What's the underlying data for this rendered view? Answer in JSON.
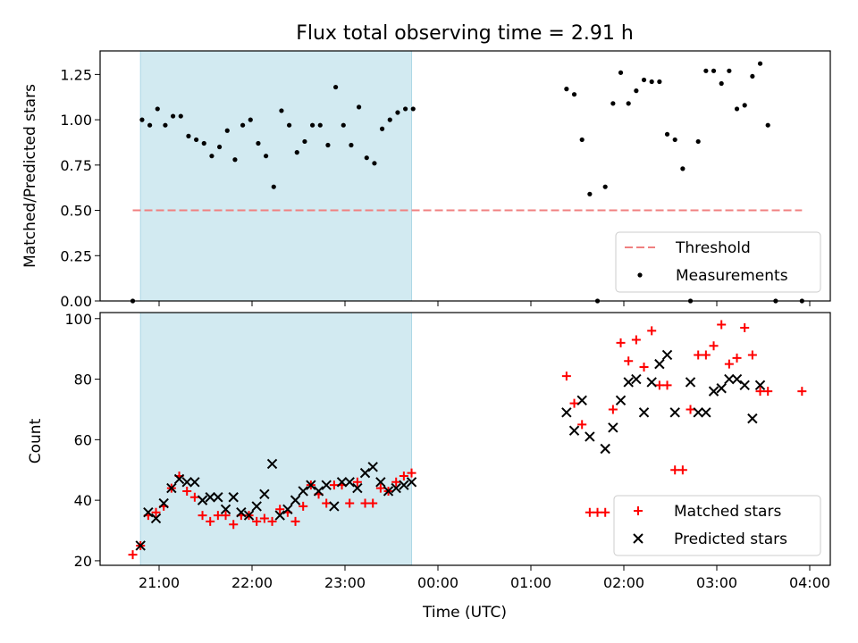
{
  "title": "Flux total observing time = 2.91 h",
  "colors": {
    "shade": "#add8e6",
    "threshold": "#f08080",
    "measurement": "#000000",
    "matched": "#ff0000",
    "predicted": "#000000"
  },
  "chart_data": [
    {
      "type": "scatter",
      "ylabel": "Matched/Predicted stars",
      "ylim": [
        0,
        1.38
      ],
      "yticks": [
        0,
        0.25,
        0.5,
        0.75,
        1.0,
        1.25
      ],
      "ytick_labels": [
        "0.00",
        "0.25",
        "0.50",
        "0.75",
        "1.00",
        "1.25"
      ],
      "shaded_interval": [
        "20:48",
        "23:43"
      ],
      "threshold": {
        "name": "Threshold",
        "y": 0.5,
        "x_range": [
          "20:43",
          "03:55"
        ]
      },
      "legend": {
        "position": "lower-right",
        "entries": [
          "Threshold",
          "Measurements"
        ]
      },
      "series": [
        {
          "name": "Measurements",
          "points": [
            [
              "20:43",
              0.0
            ],
            [
              "20:49",
              1.0
            ],
            [
              "20:54",
              0.97
            ],
            [
              "20:59",
              1.06
            ],
            [
              "21:04",
              0.97
            ],
            [
              "21:09",
              1.02
            ],
            [
              "21:14",
              1.02
            ],
            [
              "21:19",
              0.91
            ],
            [
              "21:24",
              0.89
            ],
            [
              "21:29",
              0.87
            ],
            [
              "21:34",
              0.8
            ],
            [
              "21:39",
              0.85
            ],
            [
              "21:44",
              0.94
            ],
            [
              "21:49",
              0.78
            ],
            [
              "21:54",
              0.97
            ],
            [
              "21:59",
              1.0
            ],
            [
              "22:04",
              0.87
            ],
            [
              "22:09",
              0.8
            ],
            [
              "22:14",
              0.63
            ],
            [
              "22:19",
              1.05
            ],
            [
              "22:24",
              0.97
            ],
            [
              "22:29",
              0.82
            ],
            [
              "22:34",
              0.88
            ],
            [
              "22:39",
              0.97
            ],
            [
              "22:44",
              0.97
            ],
            [
              "22:49",
              0.86
            ],
            [
              "22:54",
              1.18
            ],
            [
              "22:59",
              0.97
            ],
            [
              "23:04",
              0.86
            ],
            [
              "23:09",
              1.07
            ],
            [
              "23:14",
              0.79
            ],
            [
              "23:19",
              0.76
            ],
            [
              "23:24",
              0.95
            ],
            [
              "23:29",
              1.0
            ],
            [
              "23:34",
              1.04
            ],
            [
              "23:39",
              1.06
            ],
            [
              "23:44",
              1.06
            ],
            [
              "01:23",
              1.17
            ],
            [
              "01:28",
              1.14
            ],
            [
              "01:33",
              0.89
            ],
            [
              "01:38",
              0.59
            ],
            [
              "01:43",
              0.0
            ],
            [
              "01:48",
              0.63
            ],
            [
              "01:53",
              1.09
            ],
            [
              "01:58",
              1.26
            ],
            [
              "02:03",
              1.09
            ],
            [
              "02:08",
              1.16
            ],
            [
              "02:13",
              1.22
            ],
            [
              "02:18",
              1.21
            ],
            [
              "02:23",
              1.21
            ],
            [
              "02:28",
              0.92
            ],
            [
              "02:33",
              0.89
            ],
            [
              "02:38",
              0.73
            ],
            [
              "02:43",
              0.0
            ],
            [
              "02:48",
              0.88
            ],
            [
              "02:53",
              1.27
            ],
            [
              "02:58",
              1.27
            ],
            [
              "03:03",
              1.2
            ],
            [
              "03:08",
              1.27
            ],
            [
              "03:13",
              1.06
            ],
            [
              "03:18",
              1.08
            ],
            [
              "03:23",
              1.24
            ],
            [
              "03:28",
              1.31
            ],
            [
              "03:33",
              0.97
            ],
            [
              "03:38",
              0.0
            ],
            [
              "03:55",
              0.0
            ]
          ]
        }
      ]
    },
    {
      "type": "scatter",
      "xlabel": "Time (UTC)",
      "ylabel": "Count",
      "ylim": [
        18.5,
        102
      ],
      "yticks": [
        20,
        40,
        60,
        80,
        100
      ],
      "ytick_labels": [
        "20",
        "40",
        "60",
        "80",
        "100"
      ],
      "xticks": [
        "21:00",
        "22:00",
        "23:00",
        "00:00",
        "01:00",
        "02:00",
        "03:00",
        "04:00"
      ],
      "shaded_interval": [
        "20:48",
        "23:43"
      ],
      "legend": {
        "position": "lower-right",
        "entries": [
          "Matched stars",
          "Predicted stars"
        ]
      },
      "series": [
        {
          "name": "Matched stars",
          "points": [
            [
              "20:43",
              22
            ],
            [
              "20:48",
              25
            ],
            [
              "20:53",
              35
            ],
            [
              "20:58",
              36
            ],
            [
              "21:03",
              38
            ],
            [
              "21:08",
              44
            ],
            [
              "21:13",
              48
            ],
            [
              "21:18",
              43
            ],
            [
              "21:23",
              41
            ],
            [
              "21:28",
              35
            ],
            [
              "21:33",
              33
            ],
            [
              "21:38",
              35
            ],
            [
              "21:43",
              35
            ],
            [
              "21:48",
              32
            ],
            [
              "21:53",
              35
            ],
            [
              "21:58",
              35
            ],
            [
              "22:03",
              33
            ],
            [
              "22:08",
              34
            ],
            [
              "22:13",
              33
            ],
            [
              "22:18",
              37
            ],
            [
              "22:23",
              36
            ],
            [
              "22:28",
              33
            ],
            [
              "22:33",
              38
            ],
            [
              "22:38",
              45
            ],
            [
              "22:43",
              42
            ],
            [
              "22:48",
              39
            ],
            [
              "22:53",
              45
            ],
            [
              "22:58",
              45
            ],
            [
              "23:03",
              39
            ],
            [
              "23:08",
              46
            ],
            [
              "23:13",
              39
            ],
            [
              "23:18",
              39
            ],
            [
              "23:23",
              44
            ],
            [
              "23:28",
              43
            ],
            [
              "23:33",
              46
            ],
            [
              "23:38",
              48
            ],
            [
              "23:43",
              49
            ],
            [
              "01:23",
              81
            ],
            [
              "01:28",
              72
            ],
            [
              "01:33",
              65
            ],
            [
              "01:38",
              36
            ],
            [
              "01:43",
              36
            ],
            [
              "01:48",
              36
            ],
            [
              "01:53",
              70
            ],
            [
              "01:58",
              92
            ],
            [
              "02:03",
              86
            ],
            [
              "02:08",
              93
            ],
            [
              "02:13",
              84
            ],
            [
              "02:18",
              96
            ],
            [
              "02:23",
              78
            ],
            [
              "02:28",
              78
            ],
            [
              "02:33",
              50
            ],
            [
              "02:38",
              50
            ],
            [
              "02:43",
              70
            ],
            [
              "02:48",
              88
            ],
            [
              "02:53",
              88
            ],
            [
              "02:58",
              91
            ],
            [
              "03:03",
              98
            ],
            [
              "03:08",
              85
            ],
            [
              "03:13",
              87
            ],
            [
              "03:18",
              97
            ],
            [
              "03:23",
              88
            ],
            [
              "03:28",
              76
            ],
            [
              "03:33",
              76
            ],
            [
              "03:55",
              76
            ]
          ]
        },
        {
          "name": "Predicted stars",
          "points": [
            [
              "20:48",
              25
            ],
            [
              "20:53",
              36
            ],
            [
              "20:58",
              34
            ],
            [
              "21:03",
              39
            ],
            [
              "21:08",
              44
            ],
            [
              "21:13",
              47
            ],
            [
              "21:18",
              46
            ],
            [
              "21:23",
              46
            ],
            [
              "21:28",
              40
            ],
            [
              "21:33",
              41
            ],
            [
              "21:38",
              41
            ],
            [
              "21:43",
              37
            ],
            [
              "21:48",
              41
            ],
            [
              "21:53",
              36
            ],
            [
              "21:58",
              35
            ],
            [
              "22:03",
              38
            ],
            [
              "22:08",
              42
            ],
            [
              "22:13",
              52
            ],
            [
              "22:18",
              35
            ],
            [
              "22:23",
              37
            ],
            [
              "22:28",
              40
            ],
            [
              "22:33",
              43
            ],
            [
              "22:38",
              45
            ],
            [
              "22:43",
              43
            ],
            [
              "22:48",
              45
            ],
            [
              "22:53",
              38
            ],
            [
              "22:58",
              46
            ],
            [
              "23:03",
              46
            ],
            [
              "23:08",
              44
            ],
            [
              "23:13",
              49
            ],
            [
              "23:18",
              51
            ],
            [
              "23:23",
              46
            ],
            [
              "23:28",
              43
            ],
            [
              "23:33",
              44
            ],
            [
              "23:38",
              45
            ],
            [
              "23:43",
              46
            ],
            [
              "01:23",
              69
            ],
            [
              "01:28",
              63
            ],
            [
              "01:33",
              73
            ],
            [
              "01:38",
              61
            ],
            [
              "01:48",
              57
            ],
            [
              "01:53",
              64
            ],
            [
              "01:58",
              73
            ],
            [
              "02:03",
              79
            ],
            [
              "02:08",
              80
            ],
            [
              "02:13",
              69
            ],
            [
              "02:18",
              79
            ],
            [
              "02:23",
              85
            ],
            [
              "02:28",
              88
            ],
            [
              "02:33",
              69
            ],
            [
              "02:43",
              79
            ],
            [
              "02:48",
              69
            ],
            [
              "02:53",
              69
            ],
            [
              "02:58",
              76
            ],
            [
              "03:03",
              77
            ],
            [
              "03:08",
              80
            ],
            [
              "03:13",
              80
            ],
            [
              "03:18",
              78
            ],
            [
              "03:23",
              67
            ],
            [
              "03:28",
              78
            ]
          ]
        }
      ]
    }
  ]
}
